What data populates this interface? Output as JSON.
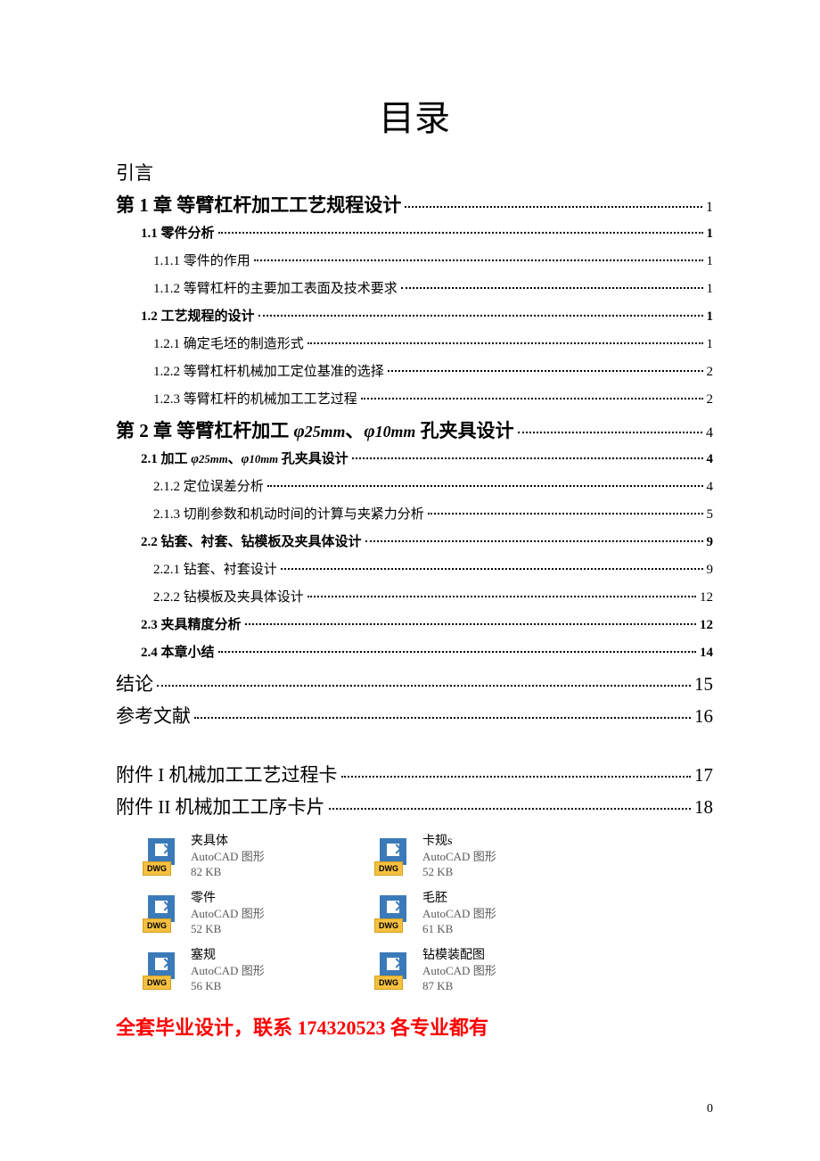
{
  "title": "目录",
  "intro": "引言",
  "toc": [
    {
      "level": "h1",
      "text": "第 1 章 等臂杠杆加工工艺规程设计",
      "page": "1"
    },
    {
      "level": "h2",
      "text": "1.1 零件分析",
      "page": "1"
    },
    {
      "level": "h3",
      "text": "1.1.1 零件的作用",
      "page": "1"
    },
    {
      "level": "h3",
      "text": "1.1.2 等臂杠杆的主要加工表面及技术要求",
      "page": "1"
    },
    {
      "level": "h2",
      "text": "1.2 工艺规程的设计",
      "page": "1"
    },
    {
      "level": "h3",
      "text": "1.2.1 确定毛坯的制造形式",
      "page": "1"
    },
    {
      "level": "h3",
      "text": "1.2.2  等臂杠杆机械加工定位基准的选择",
      "page": "2"
    },
    {
      "level": "h3",
      "text": "1.2.3 等臂杠杆的机械加工工艺过程",
      "page": "2"
    },
    {
      "level": "h1",
      "text": "第 2 章 等臂杠杆加工",
      "phi1": "φ25mm",
      "sep": "、",
      "phi2": "φ10mm",
      "text2": "孔夹具设计",
      "page": "4"
    },
    {
      "level": "h2",
      "text": "2.1 加工",
      "phi1": "φ25mm",
      "sep": "、",
      "phi2": "φ10mm",
      "text2": "孔夹具设计",
      "page": "4"
    },
    {
      "level": "h3",
      "text": "2.1.2 定位误差分析",
      "page": "4"
    },
    {
      "level": "h3",
      "text": "2.1.3 切削参数和机动时间的计算与夹紧力分析",
      "page": "5"
    },
    {
      "level": "h2",
      "text": "2.2 钻套、衬套、钻模板及夹具体设计",
      "page": "9"
    },
    {
      "level": "h3",
      "text": "2.2.1 钻套、衬套设计",
      "page": "9"
    },
    {
      "level": "h3",
      "text": "2.2.2 钻模板及夹具体设计",
      "page": "12"
    },
    {
      "level": "h2",
      "text": "2.3 夹具精度分析",
      "page": "12"
    },
    {
      "level": "h2",
      "text": "2.4 本章小结",
      "page": "14"
    },
    {
      "level": "h1-plain",
      "text": "结论",
      "page": "15"
    },
    {
      "level": "h1-plain",
      "text": "参考文献",
      "page": "16"
    }
  ],
  "appendix": [
    {
      "level": "h1-plain",
      "text": "附件 I   机械加工工艺过程卡",
      "page": "17"
    },
    {
      "level": "h1-plain",
      "text": "附件 II   机械加工工序卡片",
      "page": "18"
    }
  ],
  "files_left": [
    {
      "name": "夹具体",
      "type": "AutoCAD 图形",
      "size": "82 KB"
    },
    {
      "name": "零件",
      "type": "AutoCAD 图形",
      "size": "52 KB"
    },
    {
      "name": "塞规",
      "type": "AutoCAD 图形",
      "size": "56 KB"
    }
  ],
  "files_right": [
    {
      "name": "卡规s",
      "type": "AutoCAD 图形",
      "size": "52 KB"
    },
    {
      "name": "毛胚",
      "type": "AutoCAD 图形",
      "size": "61 KB"
    },
    {
      "name": "钻模装配图",
      "type": "AutoCAD 图形",
      "size": "87 KB"
    }
  ],
  "file_ext_label": "DWG",
  "footer": "全套毕业设计，联系 174320523  各专业都有",
  "page_number": "0",
  "colors": {
    "icon_blue": "#3b7ab8",
    "icon_yellow": "#f5c040",
    "footer_red": "#ff0000",
    "text_gray": "#5a5a5a"
  }
}
